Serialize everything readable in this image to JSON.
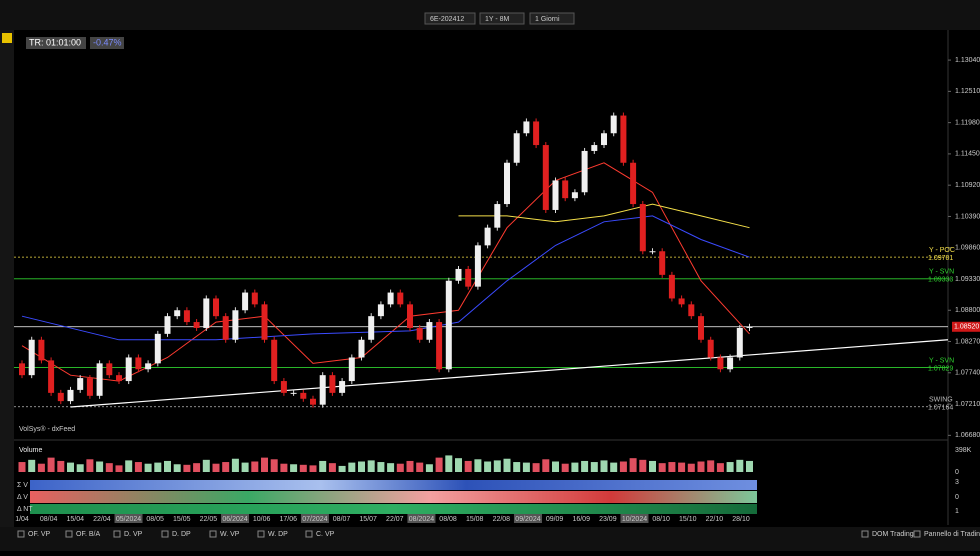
{
  "toolbar": {
    "symbol": "6E-202412",
    "range": "1Y - 8M",
    "period": "1 Giorni"
  },
  "info": {
    "timer": "TR: 01:01:00",
    "change": "-0.47%",
    "source": "VolSys® - dxFeed"
  },
  "chart_data": {
    "type": "candlestick",
    "first_open": 1.079,
    "closes": [
      1.077,
      1.083,
      1.0795,
      1.074,
      1.0726,
      1.0745,
      1.0765,
      1.0735,
      1.079,
      1.077,
      1.076,
      1.08,
      1.078,
      1.079,
      1.084,
      1.087,
      1.088,
      1.086,
      1.085,
      1.09,
      1.087,
      1.083,
      1.088,
      1.091,
      1.089,
      1.083,
      1.076,
      1.074,
      1.074,
      1.073,
      1.072,
      1.077,
      1.074,
      1.076,
      1.08,
      1.083,
      1.087,
      1.089,
      1.091,
      1.089,
      1.085,
      1.083,
      1.086,
      1.078,
      1.093,
      1.095,
      1.092,
      1.099,
      1.102,
      1.106,
      1.113,
      1.118,
      1.12,
      1.116,
      1.105,
      1.11,
      1.107,
      1.108,
      1.115,
      1.116,
      1.118,
      1.121,
      1.113,
      1.106,
      1.098,
      1.098,
      1.094,
      1.09,
      1.089,
      1.087,
      1.083,
      1.08,
      1.078,
      1.08,
      1.085,
      1.0852
    ],
    "ylim": [
      1.0694,
      1.1355
    ],
    "yticks": [
      {
        "value": 1.1304,
        "label": "1.13040"
      },
      {
        "value": 1.1251,
        "label": "1.12510"
      },
      {
        "value": 1.1198,
        "label": "1.11980"
      },
      {
        "value": 1.1145,
        "label": "1.11450"
      },
      {
        "value": 1.1092,
        "label": "1.10920"
      },
      {
        "value": 1.1039,
        "label": "1.10390"
      },
      {
        "value": 1.0986,
        "label": "1.09860"
      },
      {
        "value": 1.0933,
        "label": "1.09330"
      },
      {
        "value": 1.088,
        "label": "1.08800"
      },
      {
        "value": 1.0827,
        "label": "1.08270"
      },
      {
        "value": 1.0774,
        "label": "1.07740"
      },
      {
        "value": 1.0721,
        "label": "1.07210"
      },
      {
        "value": 1.0668,
        "label": "1.06680"
      }
    ],
    "averages": [
      {
        "color": "#ff3b30",
        "x": [
          0,
          5,
          10,
          15,
          20,
          25,
          30,
          35,
          40,
          45,
          50,
          55,
          60,
          65,
          70,
          75
        ],
        "values": [
          1.082,
          1.077,
          1.076,
          1.08,
          1.086,
          1.087,
          1.079,
          1.08,
          1.087,
          1.088,
          1.102,
          1.11,
          1.113,
          1.108,
          1.093,
          1.084
        ]
      },
      {
        "color": "#3b4bff",
        "x": [
          0,
          10,
          20,
          30,
          40,
          45,
          50,
          55,
          60,
          65,
          70,
          75
        ],
        "values": [
          1.087,
          1.083,
          1.083,
          1.084,
          1.0845,
          1.086,
          1.093,
          1.099,
          1.103,
          1.104,
          1.1,
          1.097
        ]
      },
      {
        "color": "#f5e04a",
        "x": [
          45,
          50,
          55,
          60,
          65,
          70,
          75
        ],
        "values": [
          1.104,
          1.104,
          1.103,
          1.104,
          1.106,
          1.104,
          1.102
        ]
      }
    ],
    "trendline": [
      1.0716,
      1.083
    ],
    "levels": [
      {
        "name": "Y - POC",
        "value": 1.09701,
        "label": "1.09701",
        "color": "#f5e04a"
      },
      {
        "name": "Y - SVN",
        "value": 1.09333,
        "label": "1.09333",
        "color": "#2fd02f"
      },
      {
        "value": 1.0852,
        "label": "1.08520",
        "color": "#ffffff"
      },
      {
        "name": "Y - SVN",
        "value": 1.07829,
        "label": "1.07829",
        "color": "#2fd02f"
      },
      {
        "name": "SWING",
        "value": 1.07164,
        "label": "1.07164",
        "color": "#bbbbbb"
      }
    ],
    "dates": [
      "1/04",
      "08/04",
      "15/04",
      "22/04",
      "05/2024",
      "08/05",
      "15/05",
      "22/05",
      "06/2024",
      "10/06",
      "17/06",
      "07/2024",
      "08/07",
      "15/07",
      "22/07",
      "08/2024",
      "08/08",
      "15/08",
      "22/08",
      "09/2024",
      "09/09",
      "16/09",
      "23/09",
      "10/2024",
      "08/10",
      "15/10",
      "22/10",
      "28/10"
    ],
    "volume": {
      "title": "Volume",
      "ylim": [
        0,
        398
      ],
      "yticks": [
        {
          "value": 398,
          "label": "398K"
        },
        0
      ],
      "values": [
        180,
        220,
        150,
        260,
        200,
        170,
        140,
        230,
        190,
        160,
        120,
        210,
        180,
        150,
        170,
        200,
        140,
        130,
        160,
        220,
        150,
        180,
        240,
        170,
        190,
        260,
        230,
        150,
        140,
        130,
        120,
        200,
        160,
        110,
        170,
        190,
        210,
        180,
        160,
        150,
        200,
        170,
        140,
        260,
        300,
        250,
        200,
        230,
        190,
        210,
        240,
        180,
        170,
        160,
        230,
        190,
        150,
        170,
        200,
        180,
        210,
        170,
        190,
        250,
        220,
        200,
        160,
        180,
        170,
        150,
        190,
        210,
        160,
        180,
        220,
        200
      ]
    }
  },
  "heatmap": {
    "rows": [
      "Σ V",
      "Δ V",
      "Δ NT"
    ],
    "scale": [
      "3",
      "0",
      "1"
    ]
  },
  "bottom": {
    "tabs": [
      "OF. VP",
      "OF. B/A",
      "D. VP",
      "D. DP",
      "W. VP",
      "W. DP",
      "C. VP"
    ],
    "right": [
      "DOM Trading",
      "Pannello di Trading"
    ]
  }
}
